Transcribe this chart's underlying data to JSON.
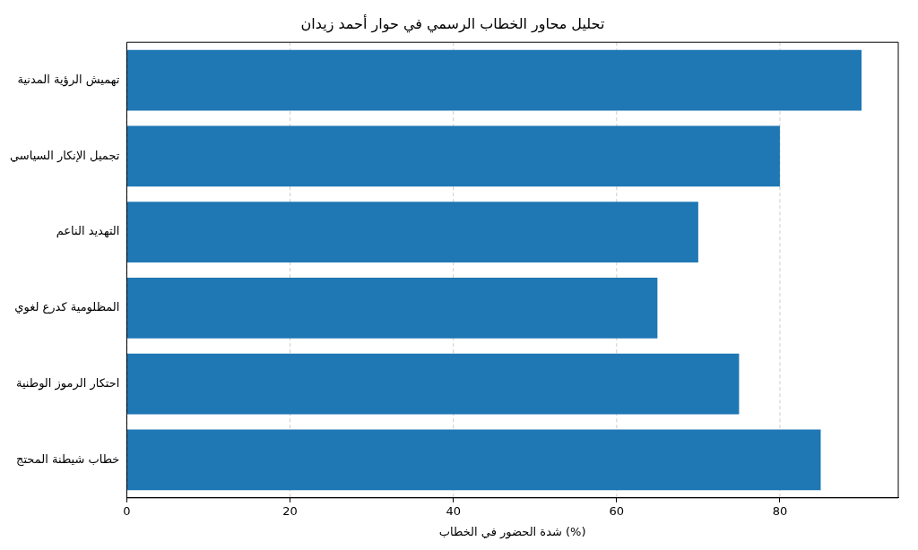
{
  "chart_data": {
    "type": "bar",
    "orientation": "horizontal",
    "title": "تحليل محاور الخطاب الرسمي في حوار أحمد زيدان",
    "xlabel": "شدة الحضور في الخطاب (%)",
    "categories": [
      "تهميش الرؤية المدنية",
      "تجميل الإنكار السياسي",
      "التهديد الناعم",
      "المظلومية كدرع لغوي",
      "احتكار الرموز الوطنية",
      "خطاب شيطنة المحتج"
    ],
    "values": [
      90,
      80,
      70,
      65,
      75,
      85
    ],
    "color": "#1f77b4",
    "xlim": [
      0,
      94.5
    ],
    "xticks": [
      0,
      20,
      40,
      60,
      80
    ],
    "grid": "x"
  }
}
